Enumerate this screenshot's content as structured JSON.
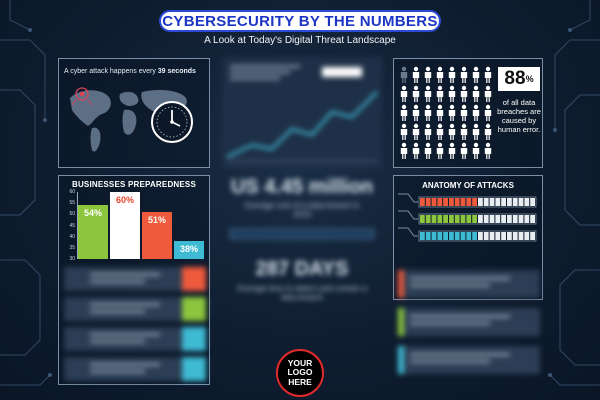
{
  "header": {
    "title": "CYBERSECURITY BY THE NUMBERS",
    "subtitle": "A Look at Today's Digital Threat Landscape"
  },
  "attack_frequency": {
    "caption_prefix": "A cyber attack happens every ",
    "caption_value": "39 seconds"
  },
  "preparedness": {
    "title": "BUSINESSES PREPAREDNESS",
    "chart_data": {
      "type": "bar",
      "categories": [
        "",
        "",
        "",
        ""
      ],
      "values": [
        54,
        60,
        51,
        38
      ],
      "labels": [
        "54%",
        "60%",
        "51%",
        "38%"
      ],
      "ylim": [
        30,
        60
      ],
      "yticks": [
        "60",
        "55",
        "50",
        "45",
        "40",
        "35",
        "30"
      ],
      "colors": [
        "#8cc63e",
        "#ffffff",
        "#ef5a3c",
        "#3fbad3"
      ]
    }
  },
  "breaches": {
    "percent": "88",
    "percent_sign": "%",
    "text": "of all data breaches are caused by human error.",
    "shaded_figures": 1,
    "total_figures": 40
  },
  "center": {
    "cost_value": "US 4.45 million",
    "cost_caption": "Average cost of a data breach in 2023",
    "days_value": "287 DAYS",
    "days_caption": "Average time to detect and contain a data breach"
  },
  "anatomy": {
    "title": "ANATOMY OF ATTACKS",
    "bar_colors": [
      "#ef5a3c",
      "#8cc63e",
      "#3fbad3"
    ],
    "fill_fraction": [
      0.48,
      0.52,
      0.5
    ]
  },
  "logo": {
    "line1": "YOUR",
    "line2": "LOGO",
    "line3": "HERE"
  },
  "colors": {
    "accent_blue": "#1c35c4",
    "green": "#8cc63e",
    "red": "#ef5a3c",
    "cyan": "#3fbad3"
  }
}
